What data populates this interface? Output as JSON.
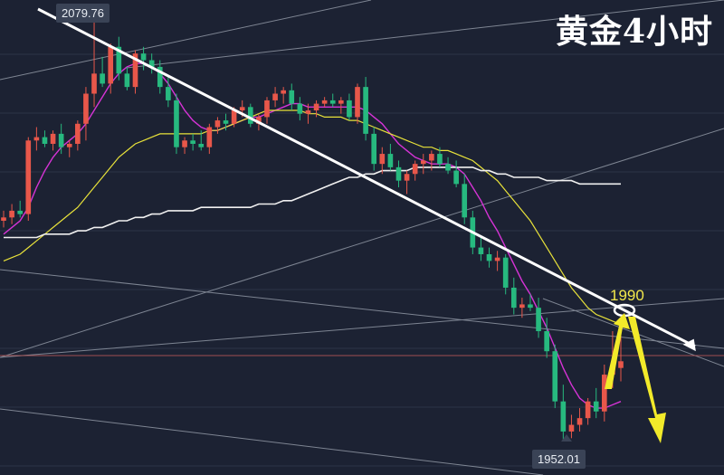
{
  "title": "黄金4小时",
  "high_label": "2079.76",
  "low_label": "1952.01",
  "level_label": "1990",
  "colors": {
    "background": "#1c2233",
    "up": "#e8574a",
    "down": "#27b97f",
    "ma_fast": "#d633d6",
    "ma_mid": "#e8e23a",
    "ma_slow": "#f0f0f0",
    "trend": "#ffffff",
    "channel": "#9aa0aa",
    "arrow": "#f2ea2a",
    "price_line": "#c25a5a"
  },
  "chart_data": {
    "type": "candlestick",
    "instrument": "黄金",
    "timeframe": "4小时",
    "ylim": [
      1942,
      2084
    ],
    "annotations": [
      {
        "type": "price-label",
        "text": "2079.76",
        "value": 2079.76
      },
      {
        "type": "price-label",
        "text": "1952.01",
        "value": 1952.01
      },
      {
        "type": "level",
        "text": "1990",
        "value": 1990
      }
    ],
    "candles": [
      [
        2018,
        2021,
        2016,
        2019
      ],
      [
        2019,
        2023,
        2017,
        2021
      ],
      [
        2021,
        2024,
        2019,
        2020
      ],
      [
        2020,
        2043,
        2018,
        2042
      ],
      [
        2042,
        2046,
        2039,
        2043
      ],
      [
        2043,
        2045,
        2040,
        2041
      ],
      [
        2041,
        2045,
        2039,
        2044
      ],
      [
        2044,
        2047,
        2038,
        2040
      ],
      [
        2040,
        2042,
        2037,
        2041
      ],
      [
        2041,
        2048,
        2039,
        2047
      ],
      [
        2047,
        2058,
        2042,
        2056
      ],
      [
        2056,
        2079.76,
        2052,
        2062
      ],
      [
        2062,
        2067,
        2058,
        2059
      ],
      [
        2059,
        2071,
        2056,
        2070
      ],
      [
        2070,
        2073,
        2060,
        2062
      ],
      [
        2062,
        2064,
        2057,
        2058
      ],
      [
        2058,
        2069,
        2056,
        2068
      ],
      [
        2068,
        2070,
        2063,
        2066
      ],
      [
        2066,
        2068,
        2062,
        2064
      ],
      [
        2064,
        2066,
        2056,
        2058
      ],
      [
        2058,
        2061,
        2052,
        2054
      ],
      [
        2054,
        2056,
        2038,
        2040
      ],
      [
        2040,
        2043,
        2038,
        2042
      ],
      [
        2042,
        2044,
        2039,
        2041
      ],
      [
        2041,
        2045,
        2039,
        2040
      ],
      [
        2040,
        2047,
        2038,
        2046
      ],
      [
        2046,
        2049,
        2044,
        2048
      ],
      [
        2048,
        2050,
        2045,
        2047
      ],
      [
        2047,
        2052,
        2046,
        2051
      ],
      [
        2051,
        2054,
        2049,
        2052
      ],
      [
        2052,
        2053,
        2046,
        2047
      ],
      [
        2047,
        2050,
        2045,
        2049
      ],
      [
        2049,
        2055,
        2047,
        2054
      ],
      [
        2054,
        2058,
        2052,
        2056
      ],
      [
        2056,
        2058,
        2053,
        2057
      ],
      [
        2057,
        2059,
        2051,
        2053
      ],
      [
        2053,
        2055,
        2048,
        2050
      ],
      [
        2050,
        2053,
        2047,
        2051
      ],
      [
        2051,
        2054,
        2049,
        2053
      ],
      [
        2053,
        2055,
        2052,
        2054
      ],
      [
        2054,
        2056,
        2052,
        2053
      ],
      [
        2053,
        2055,
        2050,
        2054
      ],
      [
        2054,
        2056,
        2048,
        2049
      ],
      [
        2049,
        2059,
        2047,
        2058
      ],
      [
        2058,
        2061,
        2042,
        2044
      ],
      [
        2044,
        2046,
        2033,
        2035
      ],
      [
        2035,
        2040,
        2032,
        2038
      ],
      [
        2038,
        2041,
        2033,
        2034
      ],
      [
        2034,
        2036,
        2028,
        2030
      ],
      [
        2030,
        2033,
        2026,
        2032
      ],
      [
        2032,
        2036,
        2030,
        2035
      ],
      [
        2035,
        2038,
        2032,
        2036
      ],
      [
        2036,
        2039,
        2033,
        2038
      ],
      [
        2038,
        2040,
        2034,
        2035
      ],
      [
        2035,
        2037,
        2032,
        2033
      ],
      [
        2033,
        2036,
        2028,
        2029
      ],
      [
        2029,
        2032,
        2017,
        2019
      ],
      [
        2019,
        2021,
        2008,
        2010
      ],
      [
        2010,
        2013,
        2006,
        2008
      ],
      [
        2008,
        2010,
        2004,
        2006
      ],
      [
        2006,
        2009,
        2003,
        2007
      ],
      [
        2007,
        2008,
        1996,
        1998
      ],
      [
        1998,
        2001,
        1990,
        1992
      ],
      [
        1992,
        1995,
        1989,
        1993
      ],
      [
        1993,
        1996,
        1991,
        1992
      ],
      [
        1992,
        1995,
        1983,
        1985
      ],
      [
        1985,
        1989,
        1977,
        1979
      ],
      [
        1979,
        1981,
        1962,
        1964
      ],
      [
        1964,
        1969,
        1952.01,
        1955
      ],
      [
        1955,
        1960,
        1953,
        1957
      ],
      [
        1957,
        1962,
        1955,
        1959
      ],
      [
        1959,
        1965,
        1957,
        1964
      ],
      [
        1964,
        1968,
        1959,
        1961
      ],
      [
        1961,
        1975,
        1958,
        1972
      ],
      [
        1972,
        1985,
        1968,
        1974
      ],
      [
        1974,
        1988,
        1970,
        1976
      ]
    ],
    "moving_averages": [
      {
        "values": [
          2014,
          2016,
          2018,
          2022,
          2028,
          2033,
          2037,
          2040,
          2042,
          2044,
          2047,
          2051,
          2055,
          2059,
          2062,
          2064,
          2065,
          2065,
          2064,
          2062,
          2059,
          2055,
          2051,
          2048,
          2046,
          2045,
          2045,
          2046,
          2047,
          2048,
          2049,
          2049,
          2050,
          2051,
          2052,
          2053,
          2053,
          2052,
          2052,
          2052,
          2052,
          2052,
          2052,
          2052,
          2051,
          2049,
          2047,
          2044,
          2041,
          2039,
          2037,
          2036,
          2035,
          2035,
          2035,
          2034,
          2032,
          2028,
          2024,
          2019,
          2015,
          2010,
          2005,
          2000,
          1996,
          1991,
          1986,
          1980,
          1974,
          1969,
          1965,
          1963,
          1962,
          1962,
          1963,
          1964
        ]
      },
      {
        "values": [
          2006,
          2007,
          2008,
          2010,
          2012,
          2014,
          2016,
          2018,
          2020,
          2022,
          2025,
          2028,
          2031,
          2034,
          2037,
          2039,
          2041,
          2042,
          2043,
          2044,
          2044,
          2044,
          2044,
          2044,
          2044,
          2045,
          2045,
          2046,
          2047,
          2048,
          2049,
          2050,
          2051,
          2051,
          2051,
          2051,
          2051,
          2050,
          2050,
          2049,
          2049,
          2049,
          2048,
          2048,
          2047,
          2046,
          2045,
          2044,
          2043,
          2042,
          2041,
          2040,
          2040,
          2039,
          2039,
          2038,
          2037,
          2036,
          2034,
          2032,
          2030,
          2027,
          2024,
          2021,
          2018,
          2014,
          2010,
          2006,
          2002,
          1998,
          1995,
          1992,
          1990,
          1989,
          1988,
          1987
        ]
      },
      {
        "values": [
          2013,
          2013,
          2013,
          2013,
          2013,
          2014,
          2014,
          2014,
          2014,
          2015,
          2015,
          2016,
          2016,
          2017,
          2018,
          2018,
          2019,
          2019,
          2020,
          2020,
          2021,
          2021,
          2021,
          2021,
          2022,
          2022,
          2022,
          2022,
          2022,
          2022,
          2022,
          2023,
          2023,
          2023,
          2024,
          2024,
          2025,
          2026,
          2027,
          2028,
          2029,
          2030,
          2031,
          2031,
          2032,
          2032,
          2033,
          2033,
          2033,
          2033,
          2034,
          2034,
          2034,
          2034,
          2034,
          2034,
          2034,
          2034,
          2033,
          2033,
          2032,
          2032,
          2031,
          2031,
          2031,
          2031,
          2030,
          2030,
          2030,
          2030,
          2029,
          2029,
          2029,
          2029,
          2029,
          2029
        ]
      }
    ]
  }
}
